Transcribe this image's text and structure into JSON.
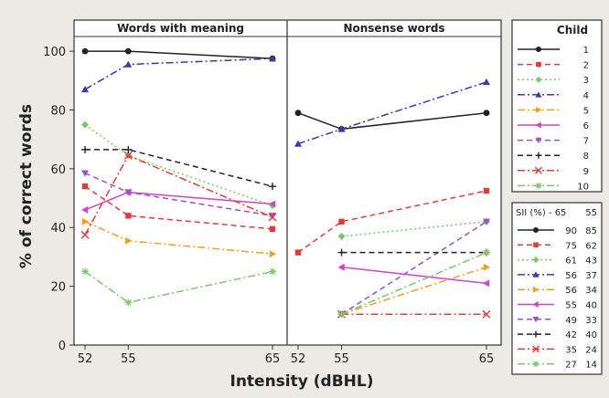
{
  "chart_data": {
    "type": "line",
    "ylabel": "% of correct words",
    "xlabel": "Intensity (dBHL)",
    "ylim": [
      0,
      105
    ],
    "yticks": [
      0,
      20,
      40,
      60,
      80,
      100
    ],
    "panels": [
      {
        "title": "Words with meaning",
        "x_ticks": [
          "52",
          "55",
          "65"
        ],
        "series": [
          {
            "name": "1",
            "color": "#222222",
            "marker": "circle",
            "dash": "solid",
            "points": [
              [
                52,
                100
              ],
              [
                55,
                100
              ],
              [
                65,
                97.5
              ]
            ]
          },
          {
            "name": "2",
            "color": "#e23b3b",
            "marker": "square",
            "dash": "dashed",
            "points": [
              [
                52,
                54
              ],
              [
                55,
                44
              ],
              [
                65,
                39.5
              ]
            ]
          },
          {
            "name": "3",
            "color": "#7ac86a",
            "marker": "diamond",
            "dash": "dotted",
            "points": [
              [
                52,
                75
              ],
              [
                55,
                64.5
              ],
              [
                65,
                47.5
              ]
            ]
          },
          {
            "name": "4",
            "color": "#3a3aa8",
            "marker": "triangle-up",
            "dash": "dashdot",
            "points": [
              [
                52,
                87
              ],
              [
                55,
                95.5
              ],
              [
                65,
                97.5
              ]
            ]
          },
          {
            "name": "5",
            "color": "#f0a020",
            "marker": "triangle-right",
            "dash": "dashdot",
            "points": [
              [
                52,
                42
              ],
              [
                55,
                35.5
              ],
              [
                65,
                31
              ]
            ]
          },
          {
            "name": "6",
            "color": "#cc44cc",
            "marker": "triangle-left",
            "dash": "solid",
            "points": [
              [
                52,
                46
              ],
              [
                55,
                52
              ],
              [
                65,
                48
              ]
            ]
          },
          {
            "name": "7",
            "color": "#9a4fcf",
            "marker": "triangle-down",
            "dash": "dashed",
            "points": [
              [
                52,
                58.5
              ],
              [
                55,
                52
              ],
              [
                65,
                44
              ]
            ]
          },
          {
            "name": "8",
            "color": "#222222",
            "marker": "plus",
            "dash": "dashed",
            "points": [
              [
                52,
                66.5
              ],
              [
                55,
                66.5
              ],
              [
                65,
                54
              ]
            ]
          },
          {
            "name": "9",
            "color": "#e23b3b",
            "marker": "x",
            "dash": "dashdot",
            "points": [
              [
                52,
                37.5
              ],
              [
                55,
                64.5
              ],
              [
                65,
                43.5
              ]
            ]
          },
          {
            "name": "10",
            "color": "#7ac86a",
            "marker": "star",
            "dash": "dashdot",
            "points": [
              [
                52,
                25
              ],
              [
                55,
                14.5
              ],
              [
                65,
                25
              ]
            ]
          }
        ]
      },
      {
        "title": "Nonsense words",
        "x_ticks": [
          "52",
          "55",
          "65"
        ],
        "series": [
          {
            "name": "1",
            "color": "#222222",
            "marker": "circle",
            "dash": "solid",
            "points": [
              [
                52,
                79
              ],
              [
                55,
                73.5
              ],
              [
                65,
                79
              ]
            ]
          },
          {
            "name": "2",
            "color": "#e23b3b",
            "marker": "square",
            "dash": "dashed",
            "points": [
              [
                52,
                31.5
              ],
              [
                55,
                42
              ],
              [
                65,
                52.5
              ]
            ]
          },
          {
            "name": "3",
            "color": "#7ac86a",
            "marker": "diamond",
            "dash": "dotted",
            "points": [
              [
                55,
                37
              ],
              [
                65,
                42
              ]
            ]
          },
          {
            "name": "4",
            "color": "#3a3aa8",
            "marker": "triangle-up",
            "dash": "dashdot",
            "points": [
              [
                52,
                68.5
              ],
              [
                55,
                73.5
              ],
              [
                65,
                89.5
              ]
            ]
          },
          {
            "name": "5",
            "color": "#f0a020",
            "marker": "triangle-right",
            "dash": "dashdot",
            "points": [
              [
                55,
                10.5
              ],
              [
                65,
                26.5
              ]
            ]
          },
          {
            "name": "6",
            "color": "#cc44cc",
            "marker": "triangle-left",
            "dash": "solid",
            "points": [
              [
                55,
                26.5
              ],
              [
                65,
                21
              ]
            ]
          },
          {
            "name": "7",
            "color": "#9a4fcf",
            "marker": "triangle-down",
            "dash": "dashed",
            "points": [
              [
                55,
                10.5
              ],
              [
                65,
                42
              ]
            ]
          },
          {
            "name": "8",
            "color": "#222222",
            "marker": "plus",
            "dash": "dashed",
            "points": [
              [
                55,
                31.5
              ],
              [
                65,
                31.5
              ]
            ]
          },
          {
            "name": "9",
            "color": "#e23b3b",
            "marker": "x",
            "dash": "dashdot",
            "points": [
              [
                55,
                10.5
              ],
              [
                65,
                10.5
              ]
            ]
          },
          {
            "name": "10",
            "color": "#7ac86a",
            "marker": "star",
            "dash": "dashdot",
            "points": [
              [
                55,
                10.5
              ],
              [
                65,
                31.5
              ]
            ]
          }
        ]
      }
    ],
    "legend_child": {
      "title": "Child",
      "entries": [
        "1",
        "2",
        "3",
        "4",
        "5",
        "6",
        "7",
        "8",
        "9",
        "10"
      ]
    },
    "legend_sii": {
      "header": "SII (%) - 65",
      "header2": "55",
      "rows": [
        [
          "90",
          "85"
        ],
        [
          "75",
          "62"
        ],
        [
          "61",
          "43"
        ],
        [
          "56",
          "37"
        ],
        [
          "56",
          "34"
        ],
        [
          "55",
          "40"
        ],
        [
          "49",
          "33"
        ],
        [
          "42",
          "40"
        ],
        [
          "35",
          "24"
        ],
        [
          "27",
          "14"
        ]
      ]
    }
  }
}
